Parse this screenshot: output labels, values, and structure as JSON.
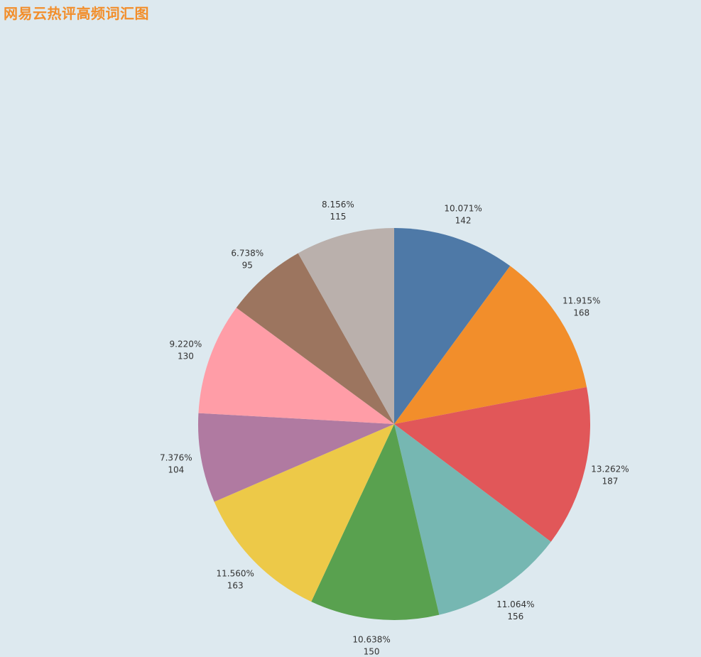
{
  "chart_data": {
    "type": "pie",
    "title": "网易云热评高频词汇图",
    "colors": [
      "#4e79a7",
      "#f28e2b",
      "#e15759",
      "#76b7b2",
      "#59a14f",
      "#edc948",
      "#b07aa1",
      "#ff9da7",
      "#9c755f",
      "#bab0ac"
    ],
    "slices": [
      {
        "value": 142,
        "percent": "10.071%"
      },
      {
        "value": 168,
        "percent": "11.915%"
      },
      {
        "value": 187,
        "percent": "13.262%"
      },
      {
        "value": 156,
        "percent": "11.064%"
      },
      {
        "value": 150,
        "percent": "10.638%"
      },
      {
        "value": 163,
        "percent": "11.560%"
      },
      {
        "value": 104,
        "percent": "7.376%"
      },
      {
        "value": 130,
        "percent": "9.220%"
      },
      {
        "value": 95,
        "percent": "6.738%"
      },
      {
        "value": 115,
        "percent": "8.156%"
      }
    ]
  }
}
